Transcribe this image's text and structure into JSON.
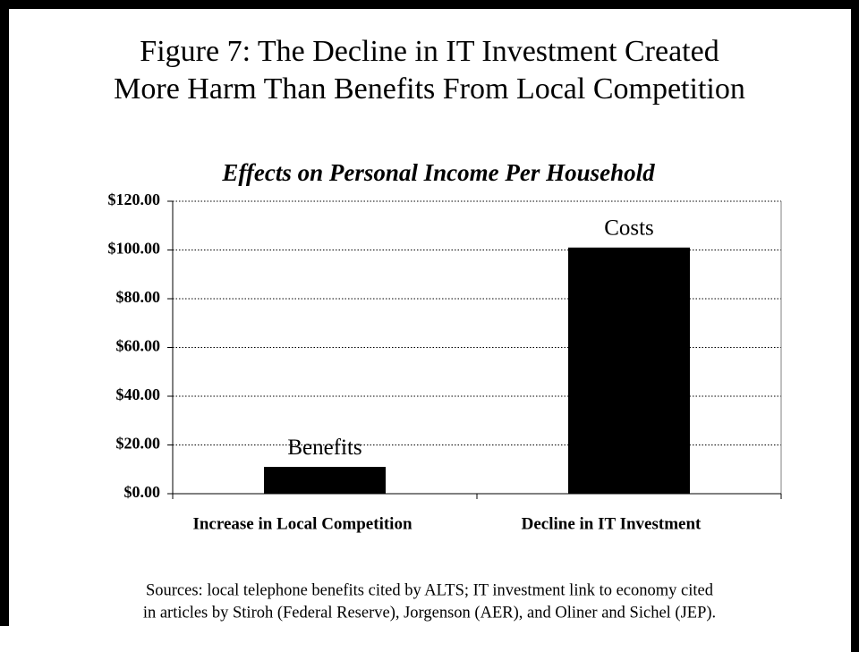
{
  "chart_data": {
    "type": "bar",
    "title": [
      "Figure 7: The Decline in IT Investment Created",
      "More Harm Than Benefits From Local Competition"
    ],
    "subtitle": "Effects on Personal Income Per Household",
    "categories": [
      "Increase in Local Competition",
      "Decline in IT Investment"
    ],
    "values": [
      11,
      101
    ],
    "annotations": [
      "Benefits",
      "Costs"
    ],
    "color": "#000000",
    "ylim": [
      0,
      120
    ],
    "yticks": [
      {
        "value": 0,
        "label": "$0.00"
      },
      {
        "value": 20,
        "label": "$20.00"
      },
      {
        "value": 40,
        "label": "$40.00"
      },
      {
        "value": 60,
        "label": "$60.00"
      },
      {
        "value": 80,
        "label": "$80.00"
      },
      {
        "value": 100,
        "label": "$100.00"
      },
      {
        "value": 120,
        "label": "$120.00"
      }
    ],
    "grid": true,
    "source": [
      "Sources: local telephone benefits cited by ALTS; IT investment link to economy cited",
      "in articles by Stiroh (Federal Reserve), Jorgenson (AER), and Oliner and Sichel (JEP)."
    ]
  }
}
